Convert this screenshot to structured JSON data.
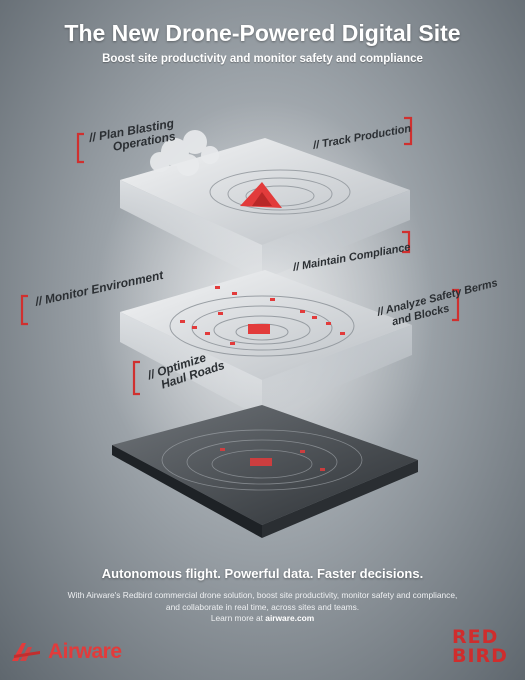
{
  "header": {
    "title": "The New Drone-Powered Digital Site",
    "subtitle": "Boost site productivity and monitor safety and compliance"
  },
  "callouts": {
    "plan_blasting_line1": "// Plan Blasting",
    "plan_blasting_line2": "Operations",
    "track_production": "// Track Production",
    "maintain_compliance": "// Maintain Compliance",
    "monitor_environment": "// Monitor Environment",
    "analyze_line1": "// Analyze Safety Berms",
    "analyze_line2": "and Blocks",
    "optimize_line1": "// Optimize",
    "optimize_line2": "Haul Roads"
  },
  "footer": {
    "tagline": "Autonomous flight. Powerful data. Faster decisions.",
    "description": "With Airware's Redbird commercial drone solution, boost site productivity, monitor safety and compliance, and collaborate in real time, across sites and teams.",
    "learn_more_prefix": "Learn more at ",
    "learn_more_link": "airware.com",
    "airware_logo_text": "Airware",
    "redbird_logo_line1": "RED",
    "redbird_logo_line2": "BIRD"
  },
  "colors": {
    "accent_red": "#e23b3b",
    "bracket_red": "#d0302f",
    "title_white": "#ffffff",
    "label_dark": "#2b2f33"
  },
  "icons": {
    "airware_logo": "airware-wing-logo-icon",
    "redbird_logo": "redbird-logo-icon"
  }
}
